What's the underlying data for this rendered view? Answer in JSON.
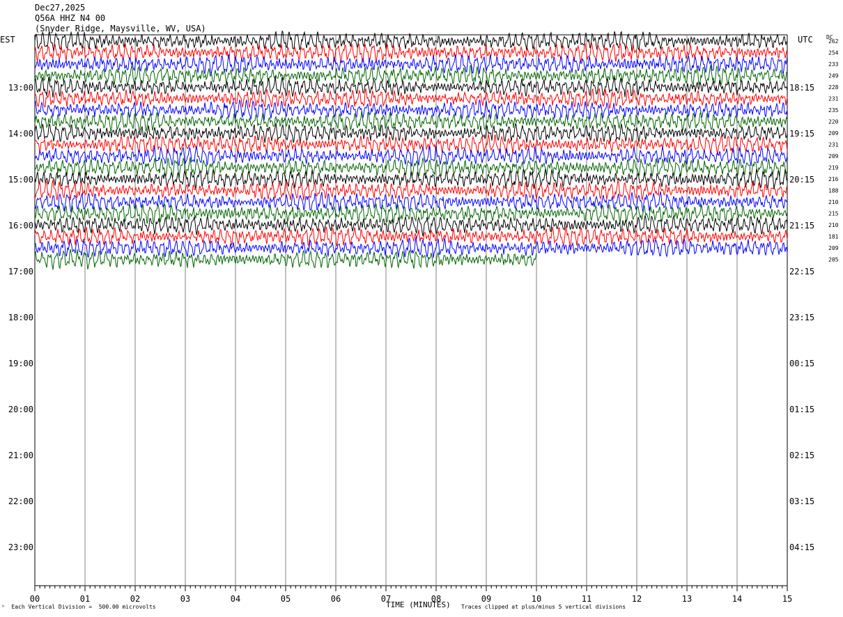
{
  "header": {
    "date": "Dec27,2025",
    "station": "Q56A HHZ N4 00",
    "location": "(Snyder Ridge, Maysville, WV, USA)"
  },
  "left_tz": "EST",
  "right_tz": "UTC",
  "dc_label": "DC",
  "footer": {
    "left": "Each Vertical Division =  500.00 microvolts",
    "center": "TIME (MINUTES)",
    "right": "Traces clipped at plus/minus 5 vertical divisions"
  },
  "colors": {
    "black": "#000000",
    "red": "#ff0000",
    "blue": "#0000ff",
    "green": "#006400",
    "grid": "#808080"
  },
  "chart_data": {
    "type": "line",
    "title": "Q56A HHZ N4 00",
    "xlabel": "TIME (MINUTES)",
    "x_ticks": [
      "00",
      "01",
      "02",
      "03",
      "04",
      "05",
      "06",
      "07",
      "08",
      "09",
      "10",
      "11",
      "12",
      "13",
      "14",
      "15"
    ],
    "xlim": [
      0,
      15
    ],
    "hour_rows": [
      {
        "est": "13:00",
        "utc": "18:15"
      },
      {
        "est": "14:00",
        "utc": "19:15"
      },
      {
        "est": "15:00",
        "utc": "20:15"
      },
      {
        "est": "16:00",
        "utc": "21:15"
      },
      {
        "est": "17:00",
        "utc": "22:15"
      },
      {
        "est": "18:00",
        "utc": "23:15"
      },
      {
        "est": "19:00",
        "utc": "00:15"
      },
      {
        "est": "20:00",
        "utc": "01:15"
      },
      {
        "est": "21:00",
        "utc": "02:15"
      },
      {
        "est": "22:00",
        "utc": "03:15"
      },
      {
        "est": "23:00",
        "utc": "04:15"
      }
    ],
    "dc_offsets": [
      262,
      254,
      233,
      249,
      228,
      231,
      235,
      220,
      209,
      231,
      209,
      219,
      216,
      188,
      210,
      215,
      210,
      181,
      209,
      205
    ],
    "trace_colors": [
      "black",
      "red",
      "blue",
      "green"
    ],
    "last_trace_end_minute": 10
  }
}
